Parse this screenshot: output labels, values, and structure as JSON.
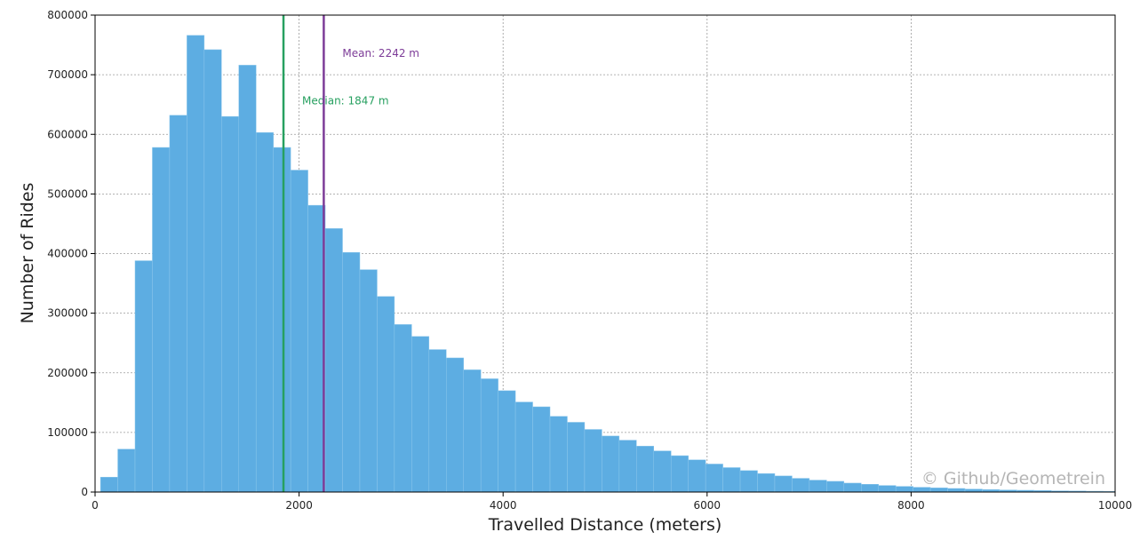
{
  "chart_data": {
    "type": "bar",
    "title": "",
    "xlabel": "Travelled Distance (meters)",
    "ylabel": "Number of Rides",
    "xlim": [
      0,
      10000
    ],
    "ylim": [
      0,
      800000
    ],
    "grid": true,
    "bar_color": "#5DADE2",
    "bin_width": 169.5,
    "x_start": 53,
    "values": [
      25000,
      72000,
      388000,
      578000,
      632000,
      766000,
      742000,
      630000,
      716000,
      603000,
      578000,
      540000,
      481000,
      442000,
      402000,
      373000,
      328000,
      281000,
      261000,
      239000,
      225000,
      205000,
      190000,
      170000,
      151000,
      143000,
      127000,
      117000,
      105000,
      94000,
      87000,
      77000,
      69000,
      61000,
      54000,
      47000,
      41000,
      36000,
      31000,
      27000,
      23000,
      20000,
      18000,
      15000,
      13000,
      11000,
      9500,
      8000,
      7000,
      6000,
      5000,
      4200,
      3500,
      3000,
      2500,
      2000,
      1700,
      1400,
      1200,
      1000
    ],
    "xticks": [
      0,
      2000,
      4000,
      6000,
      8000,
      10000
    ],
    "xtick_labels": [
      "0",
      "2000",
      "4000",
      "6000",
      "8000",
      "10000"
    ],
    "yticks": [
      0,
      100000,
      200000,
      300000,
      400000,
      500000,
      600000,
      700000,
      800000
    ],
    "ytick_labels": [
      "0",
      "100000",
      "200000",
      "300000",
      "400000",
      "500000",
      "600000",
      "700000",
      "800000"
    ],
    "vlines": [
      {
        "label": "Median: 1847 m",
        "x": 1847,
        "color": "#27A060",
        "label_y": 650000
      },
      {
        "label": "Mean: 2242 m",
        "x": 2242,
        "color": "#7D3C98",
        "label_y": 730000
      }
    ],
    "watermark": "© Github/Geometrein"
  }
}
